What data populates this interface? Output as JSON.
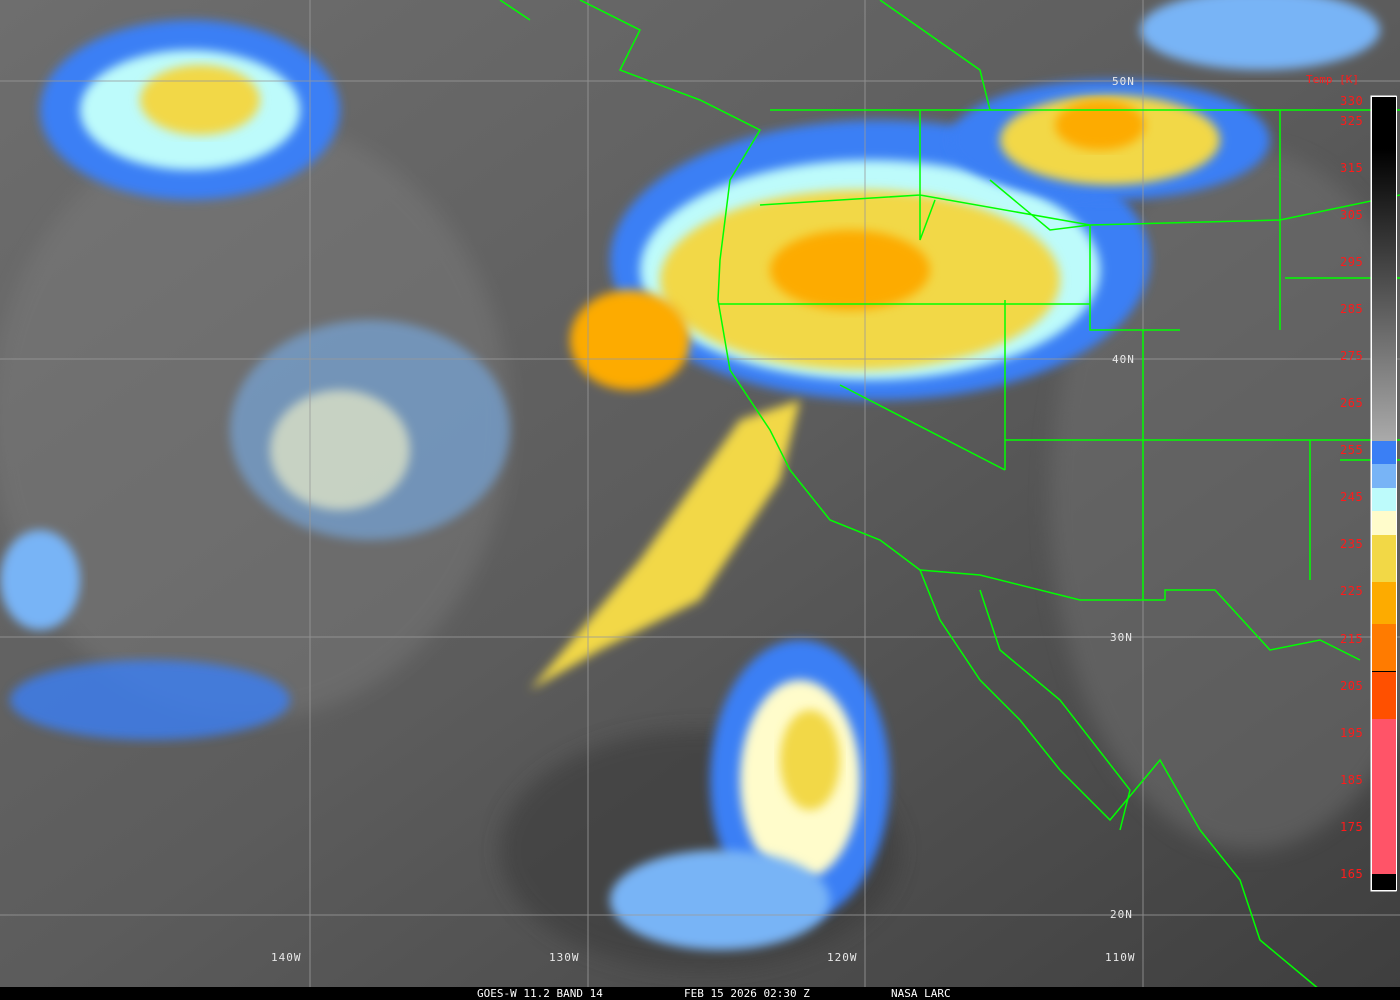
{
  "caption": {
    "satellite": "GOES-W 11.2 BAND 14",
    "datetime": "FEB 15 2026 02:30 Z",
    "credit": "NASA LARC"
  },
  "latitude_labels": [
    "50N",
    "40N",
    "30N",
    "20N"
  ],
  "longitude_labels": [
    "140W",
    "130W",
    "120W",
    "110W"
  ],
  "colorbar": {
    "title": "Temp [K]",
    "ticks": [
      "330",
      "325",
      "315",
      "305",
      "295",
      "285",
      "275",
      "265",
      "255",
      "245",
      "235",
      "225",
      "215",
      "205",
      "195",
      "185",
      "175",
      "165"
    ],
    "range_k": [
      165,
      330
    ],
    "color_steps": [
      {
        "from_k": 330,
        "to_k": 257,
        "color": "gradient black-to-gray"
      },
      {
        "from_k": 257,
        "to_k": 252,
        "color": "#3a7ff5"
      },
      {
        "from_k": 252,
        "to_k": 247,
        "color": "#78b4f6"
      },
      {
        "from_k": 247,
        "to_k": 242,
        "color": "#bdfbfb"
      },
      {
        "from_k": 242,
        "to_k": 237,
        "color": "#fffccb"
      },
      {
        "from_k": 237,
        "to_k": 227,
        "color": "#f2d846"
      },
      {
        "from_k": 227,
        "to_k": 218,
        "color": "#fdab00"
      },
      {
        "from_k": 218,
        "to_k": 208,
        "color": "#ff7b00"
      },
      {
        "from_k": 208,
        "to_k": 198,
        "color": "#ff5000"
      },
      {
        "from_k": 198,
        "to_k": 165,
        "color": "#ff5468"
      }
    ]
  },
  "colors": {
    "borders": "#00ff00",
    "grid": "#9a9a9a",
    "tick_text": "#ff1a1a"
  }
}
